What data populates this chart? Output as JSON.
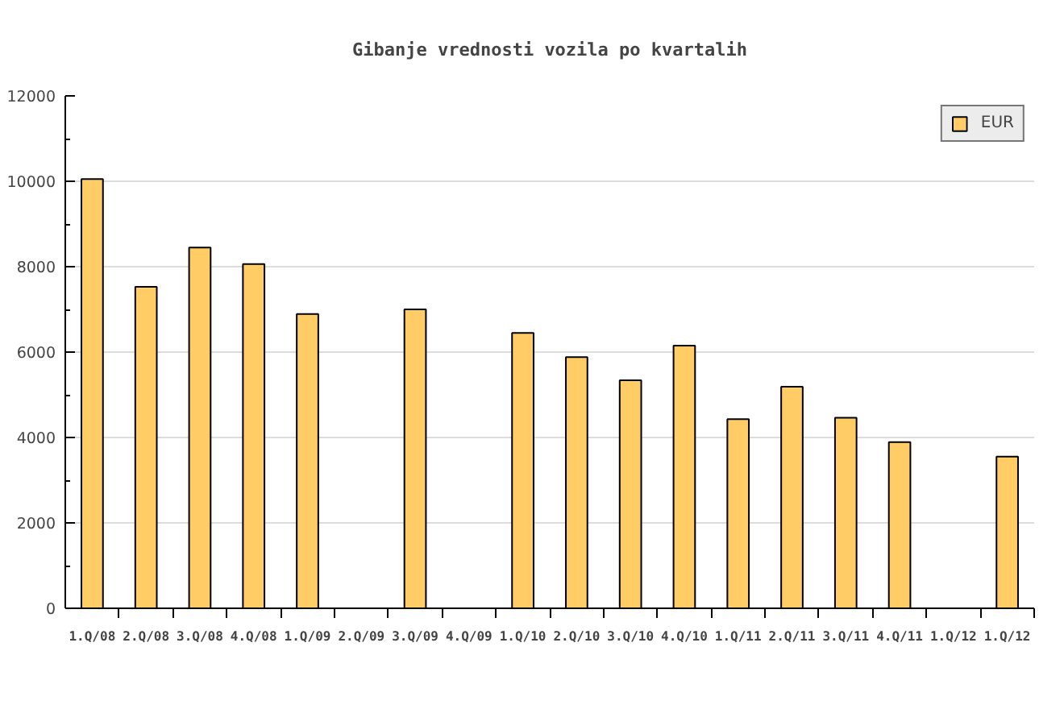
{
  "chart_data": {
    "type": "bar",
    "title": "Gibanje vrednosti vozila po kvartalih",
    "categories": [
      "1.Q/08",
      "2.Q/08",
      "3.Q/08",
      "4.Q/08",
      "1.Q/09",
      "2.Q/09",
      "3.Q/09",
      "4.Q/09",
      "1.Q/10",
      "2.Q/10",
      "3.Q/10",
      "4.Q/10",
      "1.Q/11",
      "2.Q/11",
      "3.Q/11",
      "4.Q/11",
      "1.Q/12",
      "1.Q/12"
    ],
    "series": [
      {
        "name": "EUR",
        "color": "#ffcc66",
        "values": [
          10050,
          7530,
          8450,
          8060,
          6890,
          null,
          7000,
          null,
          6450,
          5880,
          5340,
          6150,
          4430,
          5190,
          4460,
          3890,
          null,
          3550
        ]
      }
    ],
    "ylim": [
      0,
      12000
    ],
    "yticks": [
      0,
      2000,
      4000,
      6000,
      8000,
      10000,
      12000
    ],
    "grid": "y",
    "legend": "top right"
  }
}
